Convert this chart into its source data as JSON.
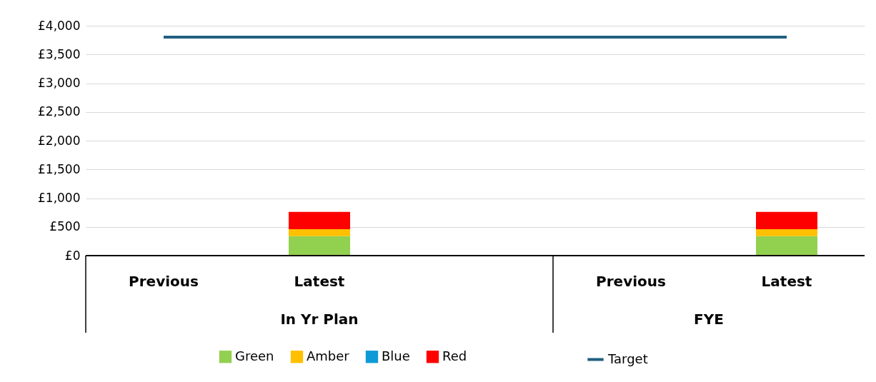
{
  "chart_data": {
    "type": "bar",
    "stacked": true,
    "categories": [
      "Previous",
      "Latest",
      null,
      "Previous",
      "Latest"
    ],
    "series": [
      {
        "name": "Green",
        "color": "#92d050",
        "values": [
          null,
          340,
          null,
          null,
          340
        ]
      },
      {
        "name": "Amber",
        "color": "#ffc000",
        "values": [
          null,
          120,
          null,
          null,
          120
        ]
      },
      {
        "name": "Blue",
        "color": "#0e9ad7",
        "values": [
          null,
          null,
          null,
          null,
          null
        ]
      },
      {
        "name": "Red",
        "color": "#ff0000",
        "values": [
          null,
          300,
          null,
          null,
          300
        ]
      },
      {
        "name": "Target",
        "type": "line",
        "color": "#215f80",
        "values": [
          3800,
          3800,
          3800,
          3800,
          3800
        ]
      }
    ],
    "ylim": [
      0,
      4000
    ],
    "yticks": [
      {
        "value": 0,
        "label": "£0"
      },
      {
        "value": 500,
        "label": "£500"
      },
      {
        "value": 1000,
        "label": "£1,000"
      },
      {
        "value": 1500,
        "label": "£1,500"
      },
      {
        "value": 2000,
        "label": "£2,000"
      },
      {
        "value": 2500,
        "label": "£2,500"
      },
      {
        "value": 3000,
        "label": "£3,000"
      },
      {
        "value": 3500,
        "label": "£3,500"
      },
      {
        "value": 4000,
        "label": "£4,000"
      }
    ],
    "annotations": [
      "In Yr Plan",
      "FYE"
    ],
    "grid": "y",
    "legend": "bottom"
  }
}
